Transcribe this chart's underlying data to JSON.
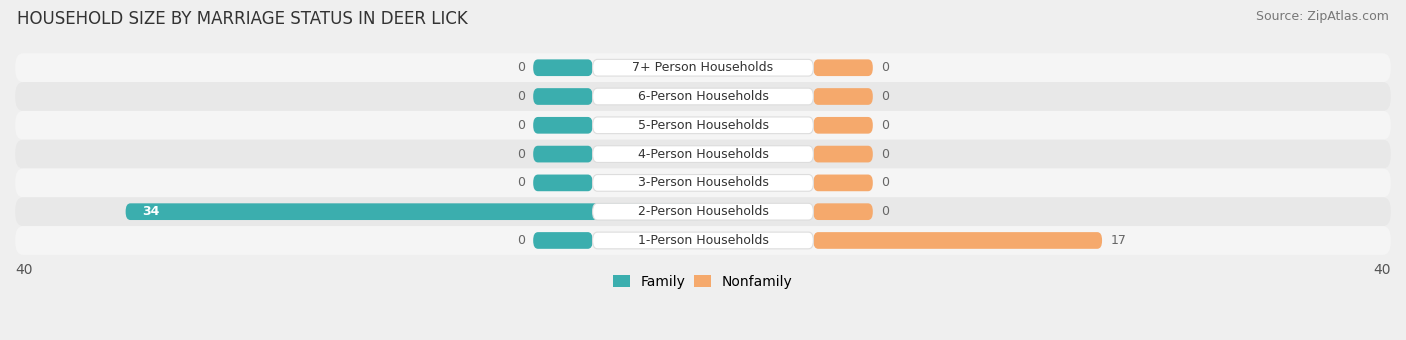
{
  "title": "HOUSEHOLD SIZE BY MARRIAGE STATUS IN DEER LICK",
  "source": "Source: ZipAtlas.com",
  "categories": [
    "7+ Person Households",
    "6-Person Households",
    "5-Person Households",
    "4-Person Households",
    "3-Person Households",
    "2-Person Households",
    "1-Person Households"
  ],
  "family_values": [
    0,
    0,
    0,
    0,
    0,
    34,
    0
  ],
  "nonfamily_values": [
    0,
    0,
    0,
    0,
    0,
    0,
    17
  ],
  "family_color": "#3BAEAE",
  "nonfamily_color": "#F5A96C",
  "xlim": 40,
  "bar_height": 0.58,
  "stub_min": 3.5,
  "bg_color": "#EFEFEF",
  "row_bg_light": "#F5F5F5",
  "row_bg_dark": "#E8E8E8",
  "title_fontsize": 12,
  "source_fontsize": 9,
  "tick_fontsize": 10,
  "legend_fontsize": 10,
  "value_fontsize": 9,
  "label_fontsize": 9
}
